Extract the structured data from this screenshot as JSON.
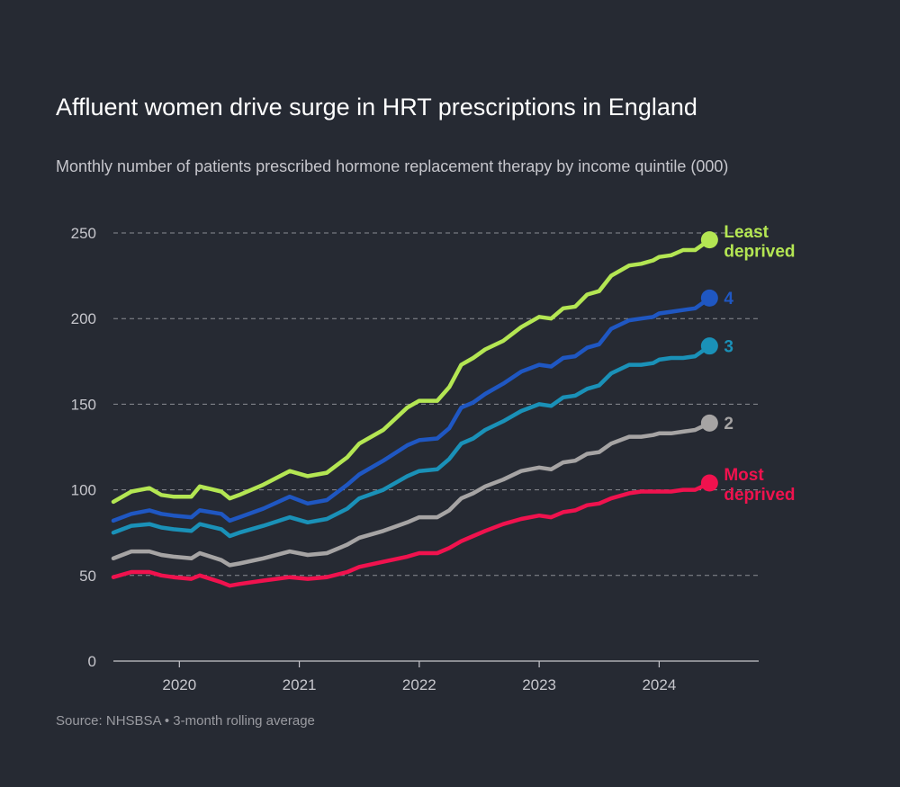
{
  "title": "Affluent women drive surge in HRT prescriptions in England",
  "subtitle": "Monthly number of patients prescribed hormone replacement therapy by income quintile (000)",
  "source": "Source: NHSBSA • 3-month rolling average",
  "colors": {
    "background": "#262a33",
    "grid": "#8a8c93",
    "axis": "#c6c6cc"
  },
  "chart_data": {
    "type": "line",
    "x_unit": "year",
    "xlim": [
      2019.45,
      2024.83
    ],
    "ylim": [
      0,
      250
    ],
    "y_ticks": [
      0,
      50,
      100,
      150,
      200,
      250
    ],
    "x_ticks": [
      2020,
      2021,
      2022,
      2023,
      2024
    ],
    "x_tick_labels": [
      "2020",
      "2021",
      "2022",
      "2023",
      "2024"
    ],
    "grid": "horizontal dashed",
    "legend": "end-of-line labels",
    "series": [
      {
        "name": "Least deprived",
        "label_lines": [
          "Least",
          "deprived"
        ],
        "color": "#b4e653",
        "points": [
          [
            2019.45,
            93
          ],
          [
            2019.6,
            99
          ],
          [
            2019.75,
            101
          ],
          [
            2019.85,
            97
          ],
          [
            2019.95,
            96
          ],
          [
            2020.1,
            96
          ],
          [
            2020.17,
            102
          ],
          [
            2020.35,
            99
          ],
          [
            2020.42,
            95
          ],
          [
            2020.5,
            97
          ],
          [
            2020.7,
            103
          ],
          [
            2020.92,
            111
          ],
          [
            2021.07,
            108
          ],
          [
            2021.23,
            110
          ],
          [
            2021.4,
            119
          ],
          [
            2021.5,
            127
          ],
          [
            2021.7,
            135
          ],
          [
            2021.9,
            148
          ],
          [
            2022.0,
            152
          ],
          [
            2022.15,
            152
          ],
          [
            2022.25,
            160
          ],
          [
            2022.35,
            173
          ],
          [
            2022.45,
            177
          ],
          [
            2022.55,
            182
          ],
          [
            2022.7,
            187
          ],
          [
            2022.85,
            195
          ],
          [
            2023.0,
            201
          ],
          [
            2023.1,
            200
          ],
          [
            2023.2,
            206
          ],
          [
            2023.3,
            207
          ],
          [
            2023.4,
            214
          ],
          [
            2023.5,
            216
          ],
          [
            2023.6,
            225
          ],
          [
            2023.75,
            231
          ],
          [
            2023.85,
            232
          ],
          [
            2023.95,
            234
          ],
          [
            2024.0,
            236
          ],
          [
            2024.1,
            237
          ],
          [
            2024.2,
            240
          ],
          [
            2024.3,
            240
          ],
          [
            2024.42,
            246
          ]
        ]
      },
      {
        "name": "4",
        "label_lines": [
          "4"
        ],
        "color": "#1f57c2",
        "points": [
          [
            2019.45,
            82
          ],
          [
            2019.6,
            86
          ],
          [
            2019.75,
            88
          ],
          [
            2019.85,
            86
          ],
          [
            2019.95,
            85
          ],
          [
            2020.1,
            84
          ],
          [
            2020.17,
            88
          ],
          [
            2020.35,
            86
          ],
          [
            2020.42,
            82
          ],
          [
            2020.5,
            84
          ],
          [
            2020.7,
            89
          ],
          [
            2020.92,
            96
          ],
          [
            2021.07,
            92
          ],
          [
            2021.23,
            94
          ],
          [
            2021.4,
            103
          ],
          [
            2021.5,
            109
          ],
          [
            2021.7,
            117
          ],
          [
            2021.9,
            126
          ],
          [
            2022.0,
            129
          ],
          [
            2022.15,
            130
          ],
          [
            2022.25,
            136
          ],
          [
            2022.35,
            148
          ],
          [
            2022.45,
            151
          ],
          [
            2022.55,
            156
          ],
          [
            2022.7,
            162
          ],
          [
            2022.85,
            169
          ],
          [
            2023.0,
            173
          ],
          [
            2023.1,
            172
          ],
          [
            2023.2,
            177
          ],
          [
            2023.3,
            178
          ],
          [
            2023.4,
            183
          ],
          [
            2023.5,
            185
          ],
          [
            2023.6,
            194
          ],
          [
            2023.75,
            199
          ],
          [
            2023.85,
            200
          ],
          [
            2023.95,
            201
          ],
          [
            2024.0,
            203
          ],
          [
            2024.1,
            204
          ],
          [
            2024.2,
            205
          ],
          [
            2024.3,
            206
          ],
          [
            2024.42,
            212
          ]
        ]
      },
      {
        "name": "3",
        "label_lines": [
          "3"
        ],
        "color": "#1a91b8",
        "points": [
          [
            2019.45,
            75
          ],
          [
            2019.6,
            79
          ],
          [
            2019.75,
            80
          ],
          [
            2019.85,
            78
          ],
          [
            2019.95,
            77
          ],
          [
            2020.1,
            76
          ],
          [
            2020.17,
            80
          ],
          [
            2020.35,
            77
          ],
          [
            2020.42,
            73
          ],
          [
            2020.5,
            75
          ],
          [
            2020.7,
            79
          ],
          [
            2020.92,
            84
          ],
          [
            2021.07,
            81
          ],
          [
            2021.23,
            83
          ],
          [
            2021.4,
            89
          ],
          [
            2021.5,
            95
          ],
          [
            2021.7,
            100
          ],
          [
            2021.9,
            108
          ],
          [
            2022.0,
            111
          ],
          [
            2022.15,
            112
          ],
          [
            2022.25,
            118
          ],
          [
            2022.35,
            127
          ],
          [
            2022.45,
            130
          ],
          [
            2022.55,
            135
          ],
          [
            2022.7,
            140
          ],
          [
            2022.85,
            146
          ],
          [
            2023.0,
            150
          ],
          [
            2023.1,
            149
          ],
          [
            2023.2,
            154
          ],
          [
            2023.3,
            155
          ],
          [
            2023.4,
            159
          ],
          [
            2023.5,
            161
          ],
          [
            2023.6,
            168
          ],
          [
            2023.75,
            173
          ],
          [
            2023.85,
            173
          ],
          [
            2023.95,
            174
          ],
          [
            2024.0,
            176
          ],
          [
            2024.1,
            177
          ],
          [
            2024.2,
            177
          ],
          [
            2024.3,
            178
          ],
          [
            2024.42,
            184
          ]
        ]
      },
      {
        "name": "2",
        "label_lines": [
          "2"
        ],
        "color": "#a6a4a4",
        "points": [
          [
            2019.45,
            60
          ],
          [
            2019.6,
            64
          ],
          [
            2019.75,
            64
          ],
          [
            2019.85,
            62
          ],
          [
            2019.95,
            61
          ],
          [
            2020.1,
            60
          ],
          [
            2020.17,
            63
          ],
          [
            2020.35,
            59
          ],
          [
            2020.42,
            56
          ],
          [
            2020.5,
            57
          ],
          [
            2020.7,
            60
          ],
          [
            2020.92,
            64
          ],
          [
            2021.07,
            62
          ],
          [
            2021.23,
            63
          ],
          [
            2021.4,
            68
          ],
          [
            2021.5,
            72
          ],
          [
            2021.7,
            76
          ],
          [
            2021.9,
            81
          ],
          [
            2022.0,
            84
          ],
          [
            2022.15,
            84
          ],
          [
            2022.25,
            88
          ],
          [
            2022.35,
            95
          ],
          [
            2022.45,
            98
          ],
          [
            2022.55,
            102
          ],
          [
            2022.7,
            106
          ],
          [
            2022.85,
            111
          ],
          [
            2023.0,
            113
          ],
          [
            2023.1,
            112
          ],
          [
            2023.2,
            116
          ],
          [
            2023.3,
            117
          ],
          [
            2023.4,
            121
          ],
          [
            2023.5,
            122
          ],
          [
            2023.6,
            127
          ],
          [
            2023.75,
            131
          ],
          [
            2023.85,
            131
          ],
          [
            2023.95,
            132
          ],
          [
            2024.0,
            133
          ],
          [
            2024.1,
            133
          ],
          [
            2024.2,
            134
          ],
          [
            2024.3,
            135
          ],
          [
            2024.42,
            139
          ]
        ]
      },
      {
        "name": "Most deprived",
        "label_lines": [
          "Most",
          "deprived"
        ],
        "color": "#f0124e",
        "points": [
          [
            2019.45,
            49
          ],
          [
            2019.6,
            52
          ],
          [
            2019.75,
            52
          ],
          [
            2019.85,
            50
          ],
          [
            2019.95,
            49
          ],
          [
            2020.1,
            48
          ],
          [
            2020.17,
            50
          ],
          [
            2020.35,
            46
          ],
          [
            2020.42,
            44
          ],
          [
            2020.5,
            45
          ],
          [
            2020.7,
            47
          ],
          [
            2020.92,
            49
          ],
          [
            2021.07,
            48
          ],
          [
            2021.23,
            49
          ],
          [
            2021.4,
            52
          ],
          [
            2021.5,
            55
          ],
          [
            2021.7,
            58
          ],
          [
            2021.9,
            61
          ],
          [
            2022.0,
            63
          ],
          [
            2022.15,
            63
          ],
          [
            2022.25,
            66
          ],
          [
            2022.35,
            70
          ],
          [
            2022.45,
            73
          ],
          [
            2022.55,
            76
          ],
          [
            2022.7,
            80
          ],
          [
            2022.85,
            83
          ],
          [
            2023.0,
            85
          ],
          [
            2023.1,
            84
          ],
          [
            2023.2,
            87
          ],
          [
            2023.3,
            88
          ],
          [
            2023.4,
            91
          ],
          [
            2023.5,
            92
          ],
          [
            2023.6,
            95
          ],
          [
            2023.75,
            98
          ],
          [
            2023.85,
            99
          ],
          [
            2023.95,
            99
          ],
          [
            2024.0,
            99
          ],
          [
            2024.1,
            99
          ],
          [
            2024.2,
            100
          ],
          [
            2024.3,
            100
          ],
          [
            2024.42,
            104
          ]
        ]
      }
    ]
  }
}
